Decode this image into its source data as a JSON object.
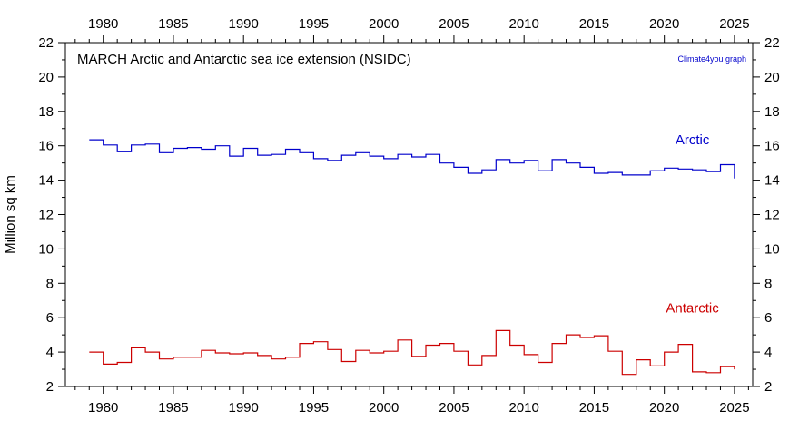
{
  "chart_data": {
    "type": "line",
    "title": "MARCH Arctic and Antarctic sea ice extension (NSIDC)",
    "credit": "Climate4you graph",
    "ylabel": "Million sq km",
    "xlabel": "",
    "xlim": [
      1977.3,
      2026.3
    ],
    "ylim": [
      2,
      22
    ],
    "x_ticks": [
      1980,
      1985,
      1990,
      1995,
      2000,
      2005,
      2010,
      2015,
      2020,
      2025
    ],
    "y_ticks": [
      2,
      4,
      6,
      8,
      10,
      12,
      14,
      16,
      18,
      20,
      22
    ],
    "grid": false,
    "step": true,
    "series": [
      {
        "name": "Arctic",
        "color": "#0000cc",
        "x": [
          1979,
          1980,
          1981,
          1982,
          1983,
          1984,
          1985,
          1986,
          1987,
          1988,
          1989,
          1990,
          1991,
          1992,
          1993,
          1994,
          1995,
          1996,
          1997,
          1998,
          1999,
          2000,
          2001,
          2002,
          2003,
          2004,
          2005,
          2006,
          2007,
          2008,
          2009,
          2010,
          2011,
          2012,
          2013,
          2014,
          2015,
          2016,
          2017,
          2018,
          2019,
          2020,
          2021,
          2022,
          2023,
          2024,
          2025
        ],
        "values": [
          16.35,
          16.05,
          15.65,
          16.05,
          16.1,
          15.6,
          15.85,
          15.9,
          15.8,
          16.0,
          15.4,
          15.85,
          15.45,
          15.5,
          15.8,
          15.6,
          15.25,
          15.15,
          15.45,
          15.6,
          15.4,
          15.25,
          15.5,
          15.35,
          15.5,
          15.0,
          14.75,
          14.4,
          14.6,
          15.2,
          15.0,
          15.15,
          14.55,
          15.2,
          15.0,
          14.75,
          14.4,
          14.45,
          14.3,
          14.3,
          14.55,
          14.7,
          14.65,
          14.6,
          14.5,
          14.9,
          14.1
        ]
      },
      {
        "name": "Antarctic",
        "color": "#cc0000",
        "x": [
          1979,
          1980,
          1981,
          1982,
          1983,
          1984,
          1985,
          1986,
          1987,
          1988,
          1989,
          1990,
          1991,
          1992,
          1993,
          1994,
          1995,
          1996,
          1997,
          1998,
          1999,
          2000,
          2001,
          2002,
          2003,
          2004,
          2005,
          2006,
          2007,
          2008,
          2009,
          2010,
          2011,
          2012,
          2013,
          2014,
          2015,
          2016,
          2017,
          2018,
          2019,
          2020,
          2021,
          2022,
          2023,
          2024,
          2025
        ],
        "values": [
          4.0,
          3.3,
          3.4,
          4.25,
          4.0,
          3.6,
          3.7,
          3.7,
          4.1,
          3.95,
          3.9,
          3.95,
          3.8,
          3.6,
          3.7,
          4.5,
          4.6,
          4.15,
          3.45,
          4.1,
          3.95,
          4.05,
          4.7,
          3.75,
          4.4,
          4.5,
          4.05,
          3.25,
          3.8,
          5.25,
          4.4,
          3.85,
          3.4,
          4.5,
          5.0,
          4.85,
          4.95,
          4.05,
          2.7,
          3.55,
          3.2,
          4.0,
          4.45,
          2.85,
          2.8,
          3.15,
          3.0
        ]
      }
    ],
    "series_labels": [
      {
        "text": "Arctic",
        "color": "#0000cc",
        "at_x": 2022,
        "at_y": 16.1
      },
      {
        "text": "Antarctic",
        "color": "#cc0000",
        "at_x": 2022,
        "at_y": 6.3
      }
    ]
  }
}
